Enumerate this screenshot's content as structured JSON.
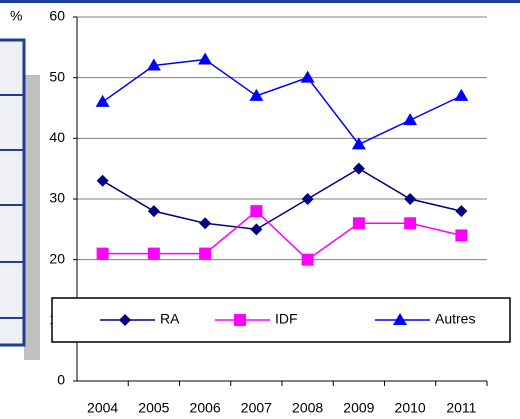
{
  "chart_data": {
    "type": "line",
    "ylabel": "%",
    "categories": [
      "2004",
      "2005",
      "2006",
      "2007",
      "2008",
      "2009",
      "2010",
      "2011"
    ],
    "series": [
      {
        "name": "RA",
        "color": "#000080",
        "marker": "diamond",
        "values": [
          33,
          28,
          26,
          25,
          30,
          35,
          30,
          28
        ]
      },
      {
        "name": "IDF",
        "color": "#ff00ff",
        "marker": "square",
        "values": [
          21,
          21,
          21,
          28,
          20,
          26,
          26,
          24
        ]
      },
      {
        "name": "Autres",
        "color": "#0000ff",
        "marker": "triangle",
        "values": [
          46,
          52,
          53,
          47,
          50,
          39,
          43,
          47
        ]
      }
    ],
    "ylim": [
      0,
      60
    ],
    "yticks": [
      0,
      10,
      20,
      30,
      40,
      50,
      60
    ],
    "grid": true,
    "legend": "bottom"
  }
}
